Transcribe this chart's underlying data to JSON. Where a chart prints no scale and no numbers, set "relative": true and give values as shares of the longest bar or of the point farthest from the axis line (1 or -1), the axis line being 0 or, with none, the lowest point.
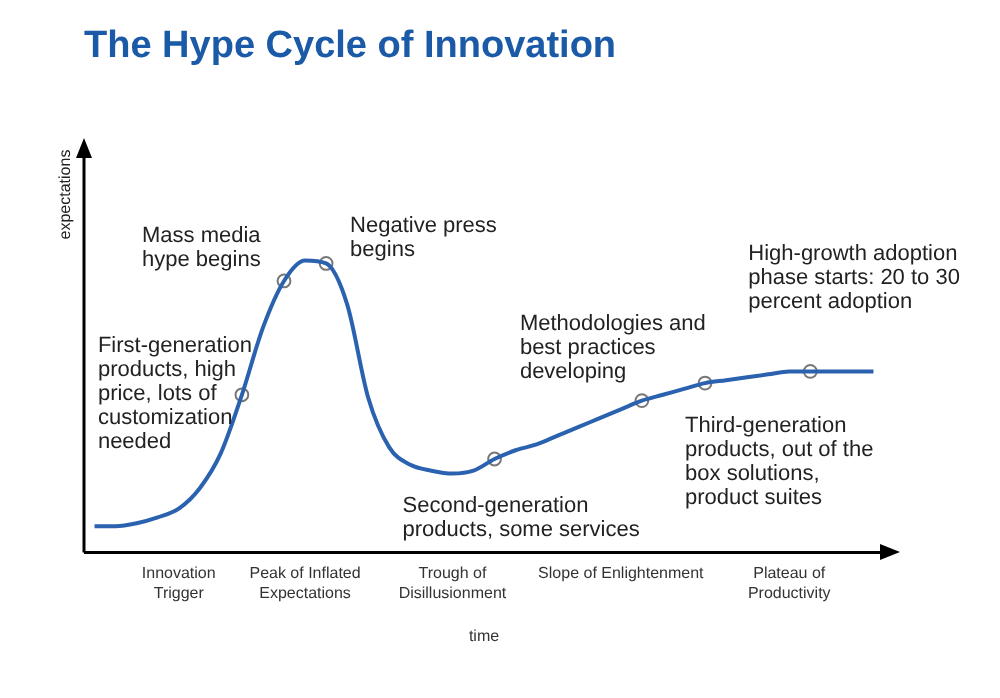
{
  "chart_data": {
    "type": "line",
    "title": "The Hype Cycle of Innovation",
    "xlabel": "time",
    "ylabel": "expectations",
    "relative": true,
    "categories": [
      null,
      null,
      null,
      null,
      "Innovation\nTrigger",
      null,
      null,
      null,
      null,
      null,
      "Peak of Inflated\nExpectations",
      null,
      null,
      null,
      null,
      null,
      null,
      "Trough of\nDisillusionment",
      null,
      null,
      null,
      null,
      null,
      null,
      null,
      "Slope of Enlightenment",
      null,
      null,
      null,
      null,
      null,
      null,
      null,
      "Plateau of\nProductivity",
      null,
      null,
      null,
      null
    ],
    "series": [
      {
        "marker": "none",
        "color": "#2a62b0",
        "values": [
          0.09,
          0.09,
          0.1,
          0.12,
          0.15,
          0.22,
          0.34,
          0.54,
          0.77,
          0.93,
          1.0,
          0.99,
          0.85,
          0.53,
          0.36,
          0.3,
          0.28,
          0.27,
          0.28,
          0.32,
          0.35,
          0.37,
          0.4,
          0.43,
          0.46,
          0.49,
          0.52,
          0.54,
          0.56,
          0.58,
          0.59,
          0.6,
          0.61,
          0.62,
          0.62,
          0.62,
          0.62,
          0.62
        ]
      },
      {
        "type": "scatter",
        "marker": "circle",
        "color": "#777777",
        "values": [
          null,
          null,
          null,
          null,
          null,
          null,
          null,
          0.54,
          null,
          0.93,
          null,
          0.99,
          null,
          null,
          null,
          null,
          null,
          null,
          null,
          0.32,
          null,
          null,
          null,
          null,
          null,
          null,
          0.52,
          null,
          null,
          0.58,
          null,
          null,
          null,
          null,
          0.62,
          null,
          null,
          null
        ]
      }
    ],
    "annotations": [
      "First-generation products, high price, lots of customization needed",
      "Mass media hype begins",
      "Negative press begins",
      "Second-generation products, some services",
      "Methodologies and best practices developing",
      "Third-generation products, out of the box solutions, product suites",
      "High-growth adoption phase starts: 20 to 30 percent adoption"
    ]
  }
}
